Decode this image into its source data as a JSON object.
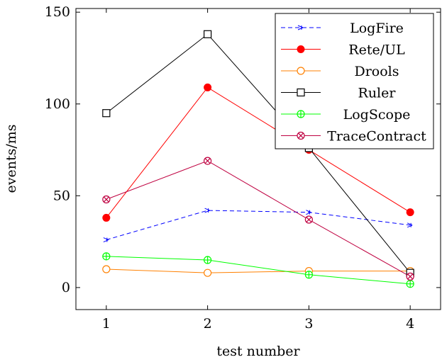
{
  "chart_data": {
    "type": "line",
    "xlabel": "test number",
    "ylabel": "events/ms",
    "x": [
      1,
      2,
      3,
      4
    ],
    "xlim": [
      0.7,
      4.3
    ],
    "ylim": [
      -12,
      152
    ],
    "xticks": [
      "1",
      "2",
      "3",
      "4"
    ],
    "yticks": [
      "0",
      "50",
      "100",
      "150"
    ],
    "grid": false,
    "legend_position": "top-right",
    "series": [
      {
        "name": "LogFire",
        "values": [
          26,
          42,
          41,
          34
        ],
        "color": "#0000ff",
        "marker": "x-arrow",
        "dashed": true
      },
      {
        "name": "Rete/UL",
        "values": [
          38,
          109,
          75,
          41
        ],
        "color": "#ff0000",
        "marker": "filled-circle",
        "dashed": false
      },
      {
        "name": "Drools",
        "values": [
          10,
          8,
          9,
          9
        ],
        "color": "#ff8000",
        "marker": "open-circle",
        "dashed": false
      },
      {
        "name": "Ruler",
        "values": [
          95,
          138,
          76,
          8
        ],
        "color": "#000000",
        "marker": "open-square",
        "dashed": false
      },
      {
        "name": "LogScope",
        "values": [
          17,
          15,
          7,
          2
        ],
        "color": "#00ff00",
        "marker": "circle-plus",
        "dashed": false
      },
      {
        "name": "TraceContract",
        "values": [
          48,
          69,
          37,
          6
        ],
        "color": "#bf0040",
        "marker": "circle-times",
        "dashed": false
      }
    ]
  }
}
